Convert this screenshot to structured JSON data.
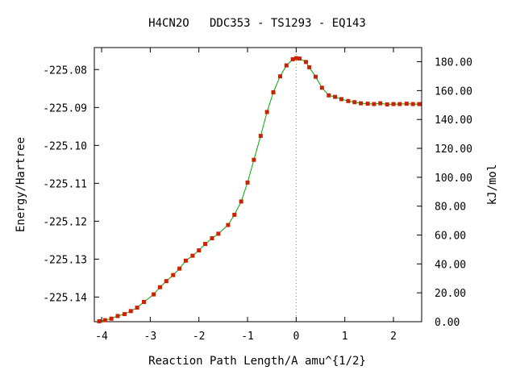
{
  "chart_data": {
    "type": "line",
    "title": "H4CN2O   DDC353 - TS1293 - EQ143",
    "xlabel": "Reaction Path Length/A amu^{1/2}",
    "ylabel": "Energy/Hartree",
    "y2label": "kJ/mol",
    "xlim": [
      -4.15,
      2.58
    ],
    "ylim": [
      -225.1465,
      -225.0742
    ],
    "y2lim": [
      0.0,
      189.8
    ],
    "x_ticks": [
      -4,
      -3,
      -2,
      -1,
      0,
      1,
      2
    ],
    "x_tick_labels": [
      "-4",
      "-3",
      "-2",
      "-1",
      "0",
      "1",
      "2"
    ],
    "y_ticks": [
      -225.08,
      -225.09,
      -225.1,
      -225.11,
      -225.12,
      -225.13,
      -225.14
    ],
    "y_tick_labels": [
      "-225.08",
      "-225.09",
      "-225.10",
      "-225.11",
      "-225.12",
      "-225.13",
      "-225.14"
    ],
    "y2_ticks": [
      0,
      20,
      40,
      60,
      80,
      100,
      120,
      140,
      160,
      180
    ],
    "y2_tick_labels": [
      "0.00",
      "20.00",
      "40.00",
      "60.00",
      "80.00",
      "100.00",
      "120.00",
      "140.00",
      "160.00",
      "180.00"
    ],
    "ts_marker_x": 0.0,
    "series": [
      {
        "color": "#cc2200",
        "line_color": "#00aa00",
        "x": [
          -4.05,
          -3.93,
          -3.8,
          -3.67,
          -3.53,
          -3.4,
          -3.27,
          -3.13,
          -2.93,
          -2.8,
          -2.67,
          -2.53,
          -2.4,
          -2.27,
          -2.13,
          -2.0,
          -1.87,
          -1.73,
          -1.6,
          -1.4,
          -1.27,
          -1.13,
          -1.0,
          -0.87,
          -0.73,
          -0.6,
          -0.47,
          -0.33,
          -0.2,
          -0.07,
          0.0,
          0.07,
          0.2,
          0.27,
          0.4,
          0.53,
          0.67,
          0.8,
          0.93,
          1.07,
          1.2,
          1.33,
          1.47,
          1.6,
          1.73,
          1.87,
          2.0,
          2.13,
          2.27,
          2.4,
          2.53
        ],
        "y": [
          -225.1464,
          -225.1461,
          -225.1457,
          -225.145,
          -225.1445,
          -225.1437,
          -225.1428,
          -225.1413,
          -225.1393,
          -225.1374,
          -225.1358,
          -225.1342,
          -225.1325,
          -225.1304,
          -225.1291,
          -225.1277,
          -225.126,
          -225.1245,
          -225.1233,
          -225.121,
          -225.1183,
          -225.1148,
          -225.1098,
          -225.1038,
          -225.0975,
          -225.0912,
          -225.086,
          -225.0818,
          -225.0789,
          -225.0773,
          -225.077,
          -225.0771,
          -225.078,
          -225.0794,
          -225.0819,
          -225.0848,
          -225.0868,
          -225.0872,
          -225.0878,
          -225.0883,
          -225.0886,
          -225.0889,
          -225.089,
          -225.0891,
          -225.0889,
          -225.0892,
          -225.0891,
          -225.0891,
          -225.089,
          -225.0891,
          -225.0891
        ]
      }
    ]
  }
}
